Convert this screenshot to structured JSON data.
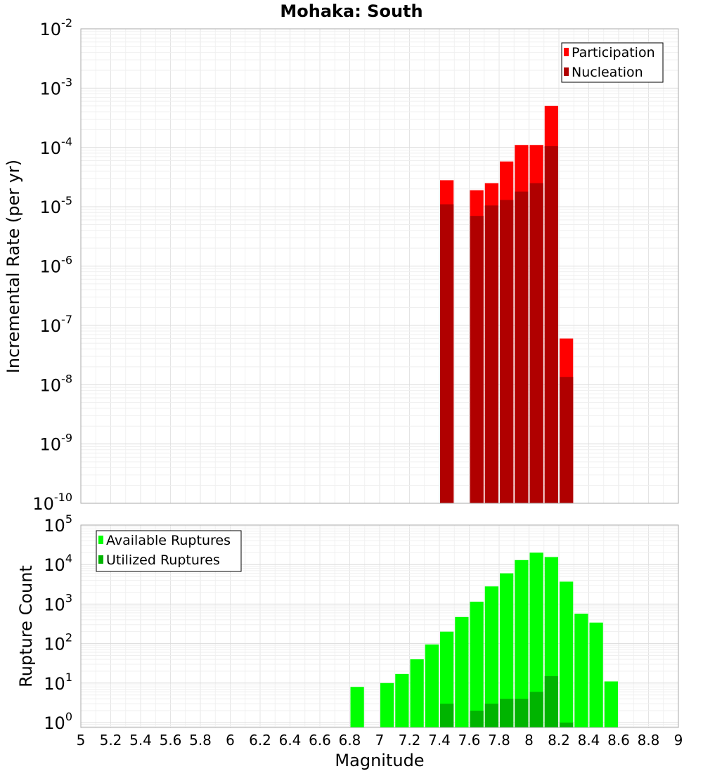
{
  "chart_data": [
    {
      "type": "bar",
      "title": "Mohaka: South",
      "xlabel": "",
      "ylabel": "Incremental Rate (per yr)",
      "xlim": [
        5,
        9
      ],
      "ylim": [
        1e-10,
        0.01
      ],
      "yscale": "log",
      "bin_width": 0.1,
      "grid": true,
      "legend_position": "top-right",
      "y_ticks": [
        {
          "base": "10",
          "exp": "-10",
          "value": 1e-10
        },
        {
          "base": "10",
          "exp": "-9",
          "value": 1e-09
        },
        {
          "base": "10",
          "exp": "-8",
          "value": 1e-08
        },
        {
          "base": "10",
          "exp": "-7",
          "value": 1e-07
        },
        {
          "base": "10",
          "exp": "-6",
          "value": 1e-06
        },
        {
          "base": "10",
          "exp": "-5",
          "value": 1e-05
        },
        {
          "base": "10",
          "exp": "-4",
          "value": 0.0001
        },
        {
          "base": "10",
          "exp": "-3",
          "value": 0.001
        },
        {
          "base": "10",
          "exp": "-2",
          "value": 0.01
        }
      ],
      "series": [
        {
          "name": "Participation",
          "color": "#ff0000",
          "x": [
            7.45,
            7.65,
            7.75,
            7.85,
            7.95,
            8.05,
            8.15,
            8.25
          ],
          "values": [
            2.8e-05,
            1.9e-05,
            2.5e-05,
            5.8e-05,
            0.00011,
            0.00011,
            0.0005,
            6e-08
          ]
        },
        {
          "name": "Nucleation",
          "color": "#b00000",
          "x": [
            7.45,
            7.65,
            7.75,
            7.85,
            7.95,
            8.05,
            8.15,
            8.25
          ],
          "values": [
            1.1e-05,
            7e-06,
            1.05e-05,
            1.3e-05,
            1.8e-05,
            2.5e-05,
            0.000105,
            1.35e-08
          ]
        }
      ]
    },
    {
      "type": "bar",
      "title": "",
      "xlabel": "Magnitude",
      "ylabel": "Rupture Count",
      "xlim": [
        5,
        9
      ],
      "ylim": [
        0.75,
        100000.0
      ],
      "yscale": "log",
      "bin_width": 0.1,
      "grid": true,
      "legend_position": "top-left",
      "x_ticks": [
        "5",
        "5.2",
        "5.4",
        "5.6",
        "5.8",
        "6",
        "6.2",
        "6.4",
        "6.6",
        "6.8",
        "7",
        "7.2",
        "7.4",
        "7.6",
        "7.8",
        "8",
        "8.2",
        "8.4",
        "8.6",
        "8.8",
        "9"
      ],
      "y_ticks": [
        {
          "base": "10",
          "exp": "0",
          "value": 1
        },
        {
          "base": "10",
          "exp": "1",
          "value": 10
        },
        {
          "base": "10",
          "exp": "2",
          "value": 100
        },
        {
          "base": "10",
          "exp": "3",
          "value": 1000
        },
        {
          "base": "10",
          "exp": "4",
          "value": 10000
        },
        {
          "base": "10",
          "exp": "5",
          "value": 100000
        }
      ],
      "series": [
        {
          "name": "Available Ruptures",
          "color": "#00ff00",
          "x": [
            6.85,
            7.05,
            7.15,
            7.25,
            7.35,
            7.45,
            7.55,
            7.65,
            7.75,
            7.85,
            7.95,
            8.05,
            8.15,
            8.25,
            8.35,
            8.45,
            8.55
          ],
          "values": [
            8,
            10,
            17,
            40,
            95,
            200,
            470,
            1150,
            2800,
            6000,
            13000,
            20000,
            15500,
            3700,
            570,
            340,
            11
          ]
        },
        {
          "name": "Utilized Ruptures",
          "color": "#00b400",
          "x": [
            7.45,
            7.65,
            7.75,
            7.85,
            7.95,
            8.05,
            8.15,
            8.25
          ],
          "values": [
            3,
            2,
            3,
            4,
            4,
            6,
            15,
            1
          ]
        }
      ]
    }
  ]
}
